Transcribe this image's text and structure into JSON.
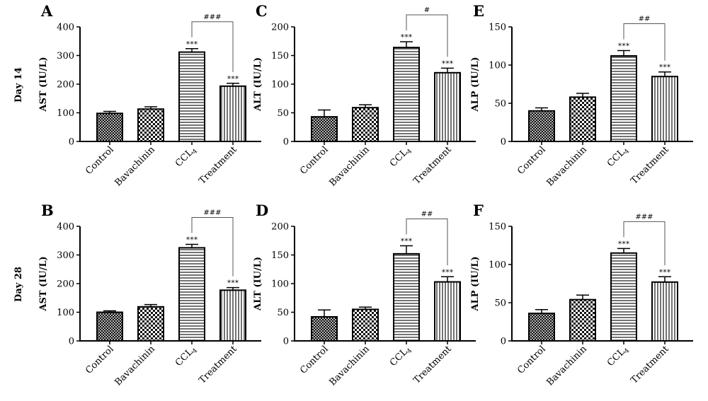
{
  "row_labels": [
    "Day 14",
    "Day 28"
  ],
  "chart_data": [
    {
      "panel": "A",
      "type": "bar",
      "ylabel": "AST (IU/L)",
      "ylim": [
        0,
        400
      ],
      "yticks": [
        0,
        100,
        200,
        300,
        400
      ],
      "categories": [
        "Control",
        "Bavachinin",
        "CCL4",
        "Treatment"
      ],
      "values": [
        98,
        113,
        312,
        193
      ],
      "errors": [
        7,
        8,
        12,
        10
      ],
      "patterns": [
        "crosshatch",
        "checker",
        "hlines",
        "vlines"
      ],
      "sig": [
        "",
        "",
        "***",
        "***"
      ],
      "bracket": {
        "from": 2,
        "to": 3,
        "label": "###"
      }
    },
    {
      "panel": "C",
      "type": "bar",
      "ylabel": "ALT (IU/L)",
      "ylim": [
        0,
        200
      ],
      "yticks": [
        0,
        50,
        100,
        150,
        200
      ],
      "categories": [
        "Control",
        "Bavachinin",
        "CCL4",
        "Treatment"
      ],
      "values": [
        43,
        59,
        164,
        120
      ],
      "errors": [
        12,
        5,
        10,
        8
      ],
      "patterns": [
        "crosshatch",
        "checker",
        "hlines",
        "vlines"
      ],
      "sig": [
        "",
        "",
        "***",
        "***"
      ],
      "bracket": {
        "from": 2,
        "to": 3,
        "label": "#"
      }
    },
    {
      "panel": "E",
      "type": "bar",
      "ylabel": "ALP (IU/L)",
      "ylim": [
        0,
        150
      ],
      "yticks": [
        0,
        50,
        100,
        150
      ],
      "categories": [
        "Control",
        "Bavachinin",
        "CCL4",
        "Treatment"
      ],
      "values": [
        40,
        58,
        112,
        85
      ],
      "errors": [
        4,
        5,
        7,
        6
      ],
      "patterns": [
        "crosshatch",
        "checker",
        "hlines",
        "vlines"
      ],
      "sig": [
        "",
        "",
        "***",
        "***"
      ],
      "bracket": {
        "from": 2,
        "to": 3,
        "label": "##"
      }
    },
    {
      "panel": "B",
      "type": "bar",
      "ylabel": "AST (IU/L)",
      "ylim": [
        0,
        400
      ],
      "yticks": [
        0,
        100,
        200,
        300,
        400
      ],
      "categories": [
        "Control",
        "Bavachinin",
        "CCL4",
        "Treatment"
      ],
      "values": [
        100,
        119,
        325,
        177
      ],
      "errors": [
        5,
        8,
        12,
        9
      ],
      "patterns": [
        "crosshatch",
        "checker",
        "hlines",
        "vlines"
      ],
      "sig": [
        "",
        "",
        "***",
        "***"
      ],
      "bracket": {
        "from": 2,
        "to": 3,
        "label": "###"
      }
    },
    {
      "panel": "D",
      "type": "bar",
      "ylabel": "ALT (IU/L)",
      "ylim": [
        0,
        200
      ],
      "yticks": [
        0,
        50,
        100,
        150,
        200
      ],
      "categories": [
        "Control",
        "Bavachinin",
        "CCL4",
        "Treatment"
      ],
      "values": [
        42,
        55,
        152,
        103
      ],
      "errors": [
        12,
        4,
        14,
        9
      ],
      "patterns": [
        "crosshatch",
        "checker",
        "hlines",
        "vlines"
      ],
      "sig": [
        "",
        "",
        "***",
        "***"
      ],
      "bracket": {
        "from": 2,
        "to": 3,
        "label": "##"
      }
    },
    {
      "panel": "F",
      "type": "bar",
      "ylabel": "ALP (IU/L)",
      "ylim": [
        0,
        150
      ],
      "yticks": [
        0,
        50,
        100,
        150
      ],
      "categories": [
        "Control",
        "Bavachinin",
        "CCL4",
        "Treatment"
      ],
      "values": [
        36,
        54,
        115,
        77
      ],
      "errors": [
        5,
        6,
        6,
        7
      ],
      "patterns": [
        "crosshatch",
        "checker",
        "hlines",
        "vlines"
      ],
      "sig": [
        "",
        "",
        "***",
        "***"
      ],
      "bracket": {
        "from": 2,
        "to": 3,
        "label": "###"
      }
    }
  ]
}
